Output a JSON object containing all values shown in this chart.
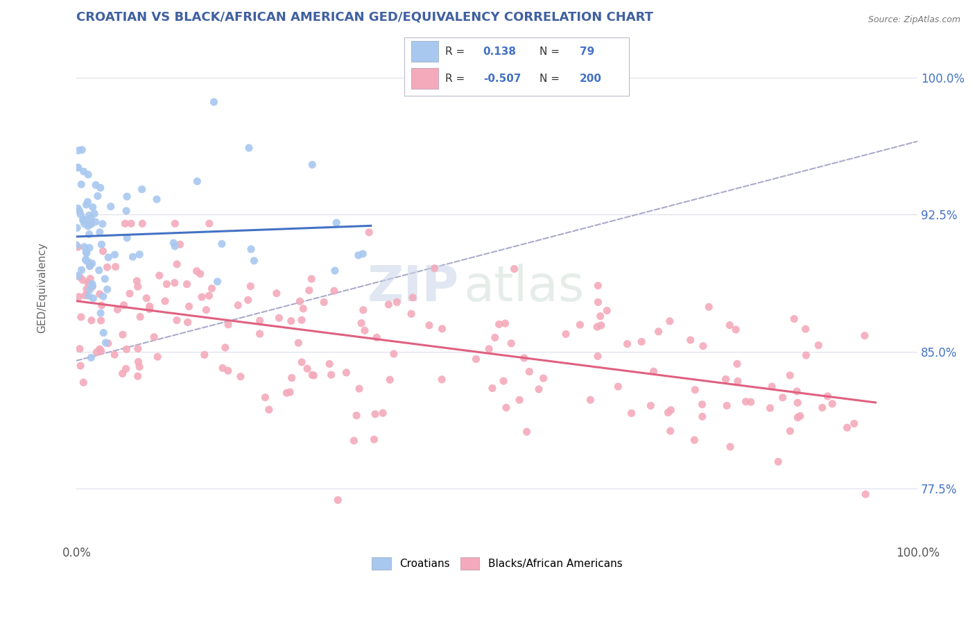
{
  "title": "CROATIAN VS BLACK/AFRICAN AMERICAN GED/EQUIVALENCY CORRELATION CHART",
  "source": "Source: ZipAtlas.com",
  "ylabel": "GED/Equivalency",
  "xlim": [
    0.0,
    100.0
  ],
  "ylim": [
    74.5,
    102.5
  ],
  "yticks": [
    77.5,
    85.0,
    92.5,
    100.0
  ],
  "xticks": [
    0.0,
    100.0
  ],
  "xticklabels": [
    "0.0%",
    "100.0%"
  ],
  "yticklabels": [
    "77.5%",
    "85.0%",
    "92.5%",
    "100.0%"
  ],
  "blue_color": "#A8C8F0",
  "pink_color": "#F4AABB",
  "blue_line_color": "#4472C4",
  "pink_line_color": "#E06080",
  "dashed_line_color": "#AAAACC",
  "watermark_zip": "ZIP",
  "watermark_atlas": "atlas",
  "background_color": "#FFFFFF",
  "title_color": "#4060A0",
  "title_fontsize": 13,
  "axis_label_color": "#666666",
  "legend_r1": "0.138",
  "legend_r2": "-0.507",
  "legend_n1": "79",
  "legend_n2": "200"
}
